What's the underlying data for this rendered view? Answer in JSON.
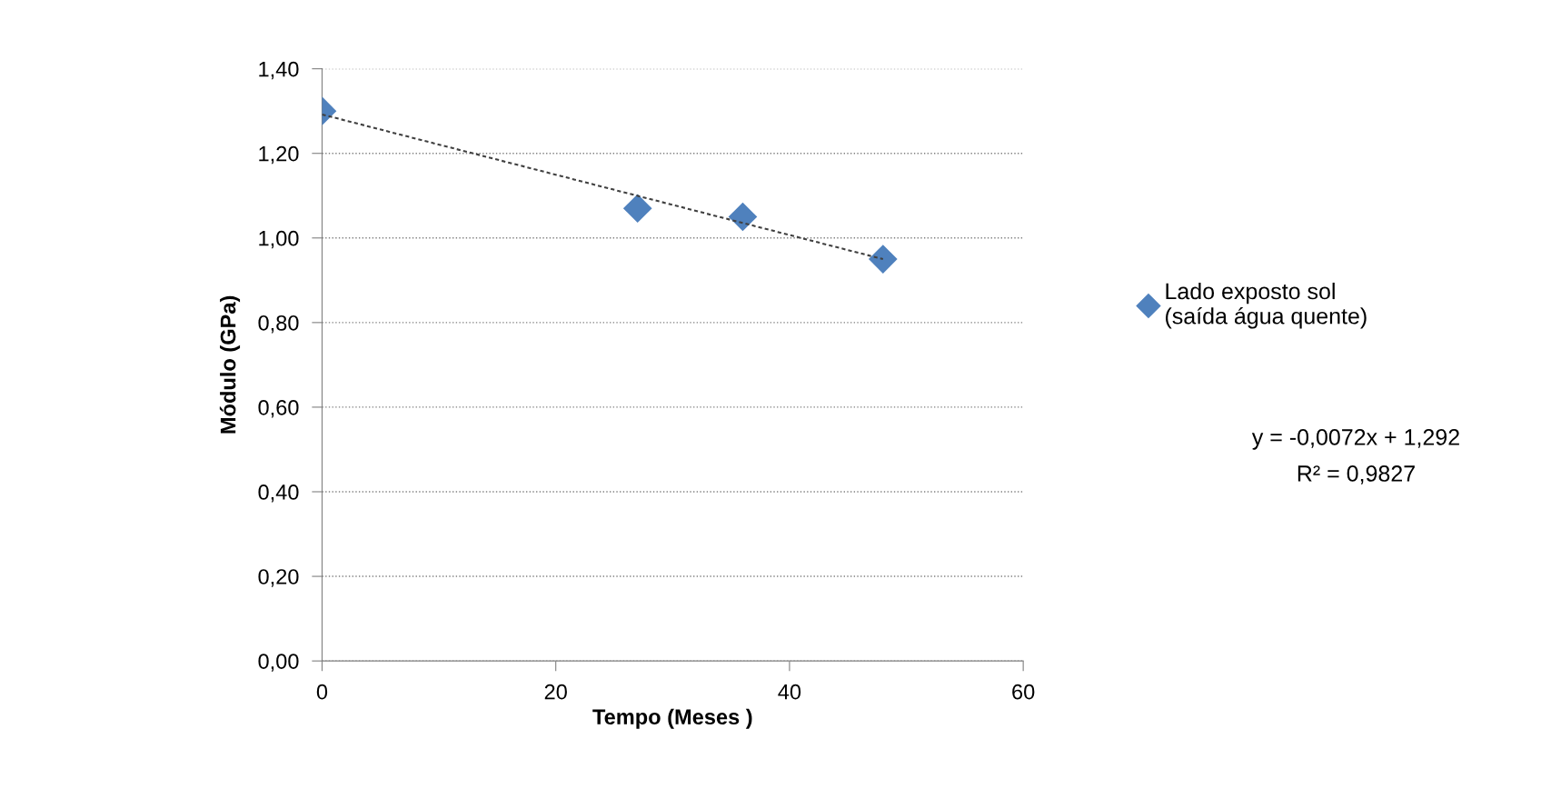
{
  "chart_data": {
    "type": "scatter",
    "xlabel": "Tempo (Meses )",
    "ylabel": "Módulo (GPa)",
    "xlim": [
      0,
      60
    ],
    "xticks": [
      0,
      20,
      40,
      60
    ],
    "ylim": [
      0,
      1.4
    ],
    "yticks": [
      {
        "value": 0,
        "label": "0,00"
      },
      {
        "value": 0.2,
        "label": "0,20"
      },
      {
        "value": 0.4,
        "label": "0,40"
      },
      {
        "value": 0.6,
        "label": "0,60"
      },
      {
        "value": 0.8,
        "label": "0,80"
      },
      {
        "value": 1.0,
        "label": "1,00"
      },
      {
        "value": 1.2,
        "label": "1,20"
      },
      {
        "value": 1.4,
        "label": "1,40"
      }
    ],
    "grid": "y",
    "legend": "right",
    "series": [
      {
        "name": "Lado exposto sol\n(saída água quente)",
        "marker": "diamond",
        "color": "#4f81bd",
        "x": [
          0,
          27,
          36,
          48
        ],
        "values": [
          1.3,
          1.07,
          1.05,
          0.95
        ]
      },
      {
        "type": "line",
        "color": "#404040",
        "line_style": "dashed",
        "x": [
          0,
          48
        ],
        "values": [
          1.292,
          0.95
        ]
      }
    ],
    "annotations": [
      "y = -0,0072x + 1,292",
      "R² = 0,9827"
    ]
  }
}
